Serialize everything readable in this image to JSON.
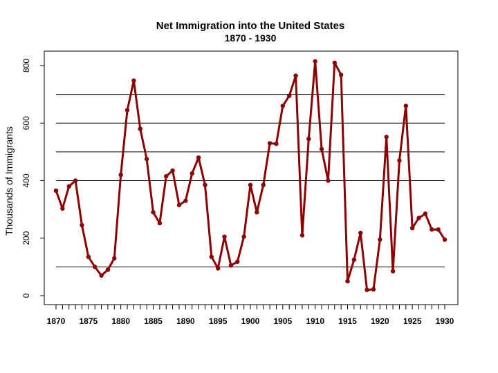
{
  "chart_data": {
    "type": "line",
    "title": "Net Immigration into the United States",
    "subtitle": "1870 - 1930",
    "xlabel": "",
    "ylabel": "Thousands of Immigrants",
    "xlim": [
      1870,
      1930
    ],
    "ylim": [
      0,
      800
    ],
    "x_tick_labels": [
      "1870",
      "1875",
      "1880",
      "1885",
      "1890",
      "1895",
      "1900",
      "1905",
      "1910",
      "1915",
      "1920",
      "1925",
      "1930"
    ],
    "y_tick_labels": [
      "0",
      "200",
      "400",
      "600",
      "800"
    ],
    "reference_lines": [
      100,
      400,
      500,
      600,
      700
    ],
    "series": [
      {
        "name": "Net Immigration",
        "color": "#8b0000",
        "x": [
          1870,
          1871,
          1872,
          1873,
          1874,
          1875,
          1876,
          1877,
          1878,
          1879,
          1880,
          1881,
          1882,
          1883,
          1884,
          1885,
          1886,
          1887,
          1888,
          1889,
          1890,
          1891,
          1892,
          1893,
          1894,
          1895,
          1896,
          1897,
          1898,
          1899,
          1900,
          1901,
          1902,
          1903,
          1904,
          1905,
          1906,
          1907,
          1908,
          1909,
          1910,
          1911,
          1912,
          1913,
          1914,
          1915,
          1916,
          1917,
          1918,
          1919,
          1920,
          1921,
          1922,
          1923,
          1924,
          1925,
          1926,
          1927,
          1928,
          1929,
          1930
        ],
        "values": [
          365,
          303,
          380,
          400,
          245,
          135,
          100,
          70,
          90,
          130,
          420,
          645,
          748,
          580,
          475,
          290,
          252,
          415,
          435,
          315,
          330,
          425,
          480,
          385,
          135,
          95,
          205,
          105,
          118,
          205,
          385,
          290,
          385,
          530,
          528,
          660,
          695,
          765,
          210,
          545,
          815,
          510,
          400,
          810,
          768,
          50,
          125,
          218,
          20,
          22,
          195,
          552,
          85,
          470,
          660,
          235,
          270,
          285,
          230,
          230,
          195
        ]
      }
    ]
  }
}
